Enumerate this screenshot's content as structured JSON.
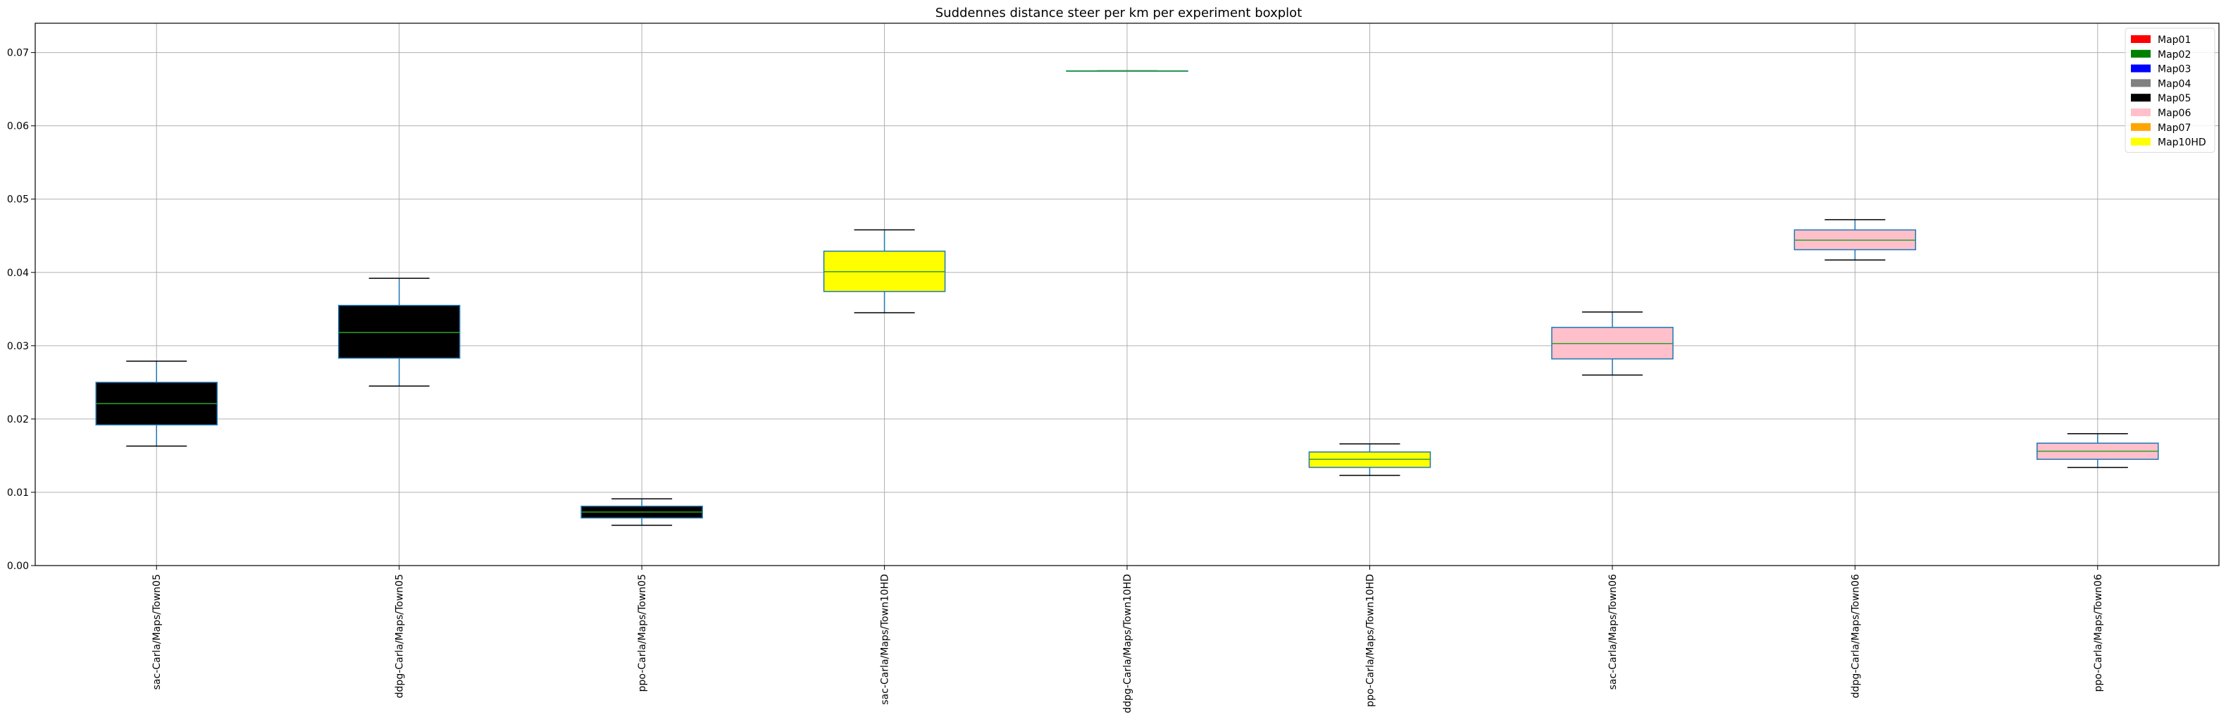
{
  "chart_data": {
    "type": "boxplot",
    "title": "Suddennes distance steer per km per experiment boxplot",
    "xlabel": "",
    "ylabel": "",
    "ylim": [
      0.0,
      0.074
    ],
    "yticks": [
      "0.00",
      "0.01",
      "0.02",
      "0.03",
      "0.04",
      "0.05",
      "0.06",
      "0.07"
    ],
    "grid": true,
    "legend_position": "top-right",
    "legend": [
      {
        "label": "Map01",
        "color": "#ff0000"
      },
      {
        "label": "Map02",
        "color": "#008000"
      },
      {
        "label": "Map03",
        "color": "#0000ff"
      },
      {
        "label": "Map04",
        "color": "#808080"
      },
      {
        "label": "Map05",
        "color": "#000000"
      },
      {
        "label": "Map06",
        "color": "#ffc0cb"
      },
      {
        "label": "Map07",
        "color": "#ffa500"
      },
      {
        "label": "Map10HD",
        "color": "#ffff00"
      }
    ],
    "categories": [
      "sac-Carla/Maps/Town05",
      "ddpg-Carla/Maps/Town05",
      "ppo-Carla/Maps/Town05",
      "sac-Carla/Maps/Town10HD",
      "ddpg-Carla/Maps/Town10HD",
      "ppo-Carla/Maps/Town10HD",
      "sac-Carla/Maps/Town06",
      "ddpg-Carla/Maps/Town06",
      "ppo-Carla/Maps/Town06"
    ],
    "boxes": [
      {
        "whisker_low": 0.0163,
        "q1": 0.0192,
        "median": 0.0221,
        "q3": 0.025,
        "whisker_high": 0.0279,
        "fill": "#000000"
      },
      {
        "whisker_low": 0.0245,
        "q1": 0.0283,
        "median": 0.0318,
        "q3": 0.0355,
        "whisker_high": 0.0392,
        "fill": "#000000"
      },
      {
        "whisker_low": 0.0055,
        "q1": 0.0065,
        "median": 0.0073,
        "q3": 0.0081,
        "whisker_high": 0.0091,
        "fill": "#000000"
      },
      {
        "whisker_low": 0.0345,
        "q1": 0.0374,
        "median": 0.0401,
        "q3": 0.0429,
        "whisker_high": 0.0458,
        "fill": "#ffff00"
      },
      {
        "whisker_low": 0.0675,
        "q1": 0.0675,
        "median": 0.0675,
        "q3": 0.0675,
        "whisker_high": 0.0675,
        "fill": "#ffff00"
      },
      {
        "whisker_low": 0.0123,
        "q1": 0.0134,
        "median": 0.0145,
        "q3": 0.0155,
        "whisker_high": 0.0166,
        "fill": "#ffff00"
      },
      {
        "whisker_low": 0.026,
        "q1": 0.0282,
        "median": 0.0303,
        "q3": 0.0325,
        "whisker_high": 0.0346,
        "fill": "#ffc0cb"
      },
      {
        "whisker_low": 0.0417,
        "q1": 0.0431,
        "median": 0.0444,
        "q3": 0.0458,
        "whisker_high": 0.0472,
        "fill": "#ffc0cb"
      },
      {
        "whisker_low": 0.0134,
        "q1": 0.0145,
        "median": 0.0156,
        "q3": 0.0167,
        "whisker_high": 0.018,
        "fill": "#ffc0cb"
      }
    ],
    "colors": {
      "box_edge": "#1f77b4",
      "median": "#2ca02c",
      "whisker": "#1f77b4",
      "cap": "#000000",
      "grid": "#b0b0b0"
    }
  }
}
